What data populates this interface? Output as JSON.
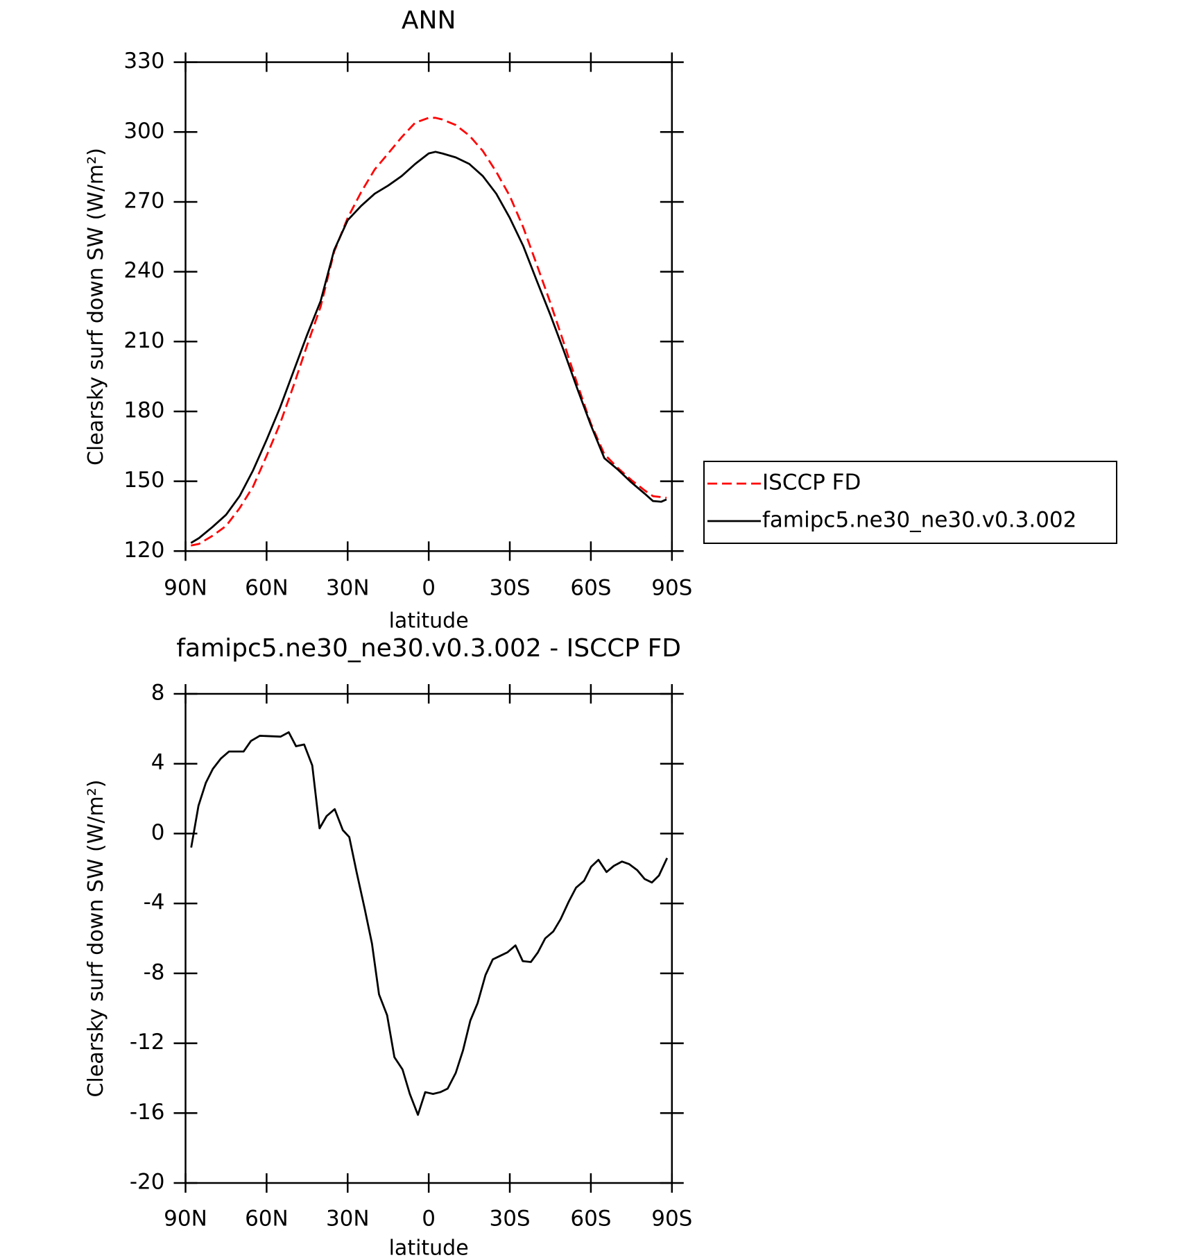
{
  "chart_data": [
    {
      "type": "line",
      "title": "ANN",
      "x_label": "latitude",
      "y_label": "Clearsky surf down SW (W/m²)",
      "x": [
        88,
        85,
        80,
        75,
        70,
        65,
        60,
        55,
        50,
        45,
        40,
        35,
        30,
        25,
        20,
        15,
        10,
        5,
        0,
        -2.5,
        -5,
        -10,
        -15,
        -20,
        -25,
        -30,
        -35,
        -40,
        -45,
        -50,
        -55,
        -60,
        -65,
        -70,
        -75,
        -80,
        -83,
        -86,
        -88
      ],
      "series": [
        {
          "name": "ISCCP FD",
          "color": "#ff0000",
          "line_style": "dashed",
          "values": [
            122.4,
            123.1,
            126.6,
            130.8,
            138.4,
            147.7,
            160.9,
            174.8,
            191.1,
            208.4,
            225,
            248.6,
            263.1,
            274.2,
            283.9,
            290.8,
            297.8,
            304,
            306.1,
            306.1,
            305.4,
            303,
            298.5,
            291.9,
            282.9,
            272.5,
            259,
            243,
            226.7,
            209.4,
            191.7,
            174.8,
            161.6,
            155.7,
            150.5,
            146,
            143.6,
            143.2,
            142.9
          ]
        },
        {
          "name": "famipc5.ne30_ne30.v0.3.002",
          "color": "#000000",
          "line_style": "solid",
          "values": [
            123.5,
            125.6,
            130.4,
            135.6,
            143.6,
            154.7,
            167.8,
            181.7,
            197.3,
            212.9,
            227.4,
            249.3,
            262.1,
            268.3,
            273.5,
            277,
            281.1,
            286.3,
            290.8,
            291.5,
            290.8,
            289.1,
            286.3,
            281.1,
            273.5,
            263.1,
            251,
            236.1,
            221.5,
            206,
            189.7,
            174.1,
            159.9,
            155,
            149.5,
            144.6,
            141.5,
            141.2,
            142.2
          ]
        }
      ],
      "xlim": [
        90,
        -90
      ],
      "xticks": [
        {
          "value": 90,
          "label": "90N"
        },
        {
          "value": 60,
          "label": "60N"
        },
        {
          "value": 30,
          "label": "30N"
        },
        0,
        {
          "value": -30,
          "label": "30S"
        },
        {
          "value": -60,
          "label": "60S"
        },
        {
          "value": -90,
          "label": "90S"
        }
      ],
      "ylim": [
        120,
        330
      ],
      "yticks": [
        120,
        150,
        180,
        210,
        240,
        270,
        300,
        330
      ],
      "legend": "outside-right"
    },
    {
      "type": "line",
      "title": "famipc5.ne30_ne30.v0.3.002 - ISCCP FD",
      "x_label": "latitude",
      "y_label": "Clearsky surf down SW (W/m²)",
      "x": [
        87.9,
        85.2,
        82.5,
        79.9,
        76.9,
        73.9,
        68.5,
        65.8,
        62.5,
        54.8,
        51.8,
        49.1,
        46.1,
        43.1,
        40.4,
        37.8,
        34.8,
        31.8,
        29.4,
        26.7,
        23.7,
        21,
        18.4,
        15.4,
        12.7,
        9.7,
        7,
        4,
        1.3,
        -1.6,
        -4.3,
        -7,
        -10,
        -12.7,
        -15.4,
        -18.1,
        -21,
        -23.7,
        -26.4,
        -29.1,
        -32.1,
        -34.8,
        -37.8,
        -40.4,
        -43.1,
        -46.1,
        -48.8,
        -51.8,
        -54.5,
        -57.5,
        -60.1,
        -62.8,
        -65.8,
        -68.5,
        -71.5,
        -74.2,
        -77.2,
        -79.9,
        -82.6,
        -85.2,
        -88.2
      ],
      "values": [
        -0.8,
        1.6,
        2.9,
        3.7,
        4.3,
        4.7,
        4.7,
        5.3,
        5.6,
        5.55,
        5.8,
        5,
        5.1,
        3.9,
        0.3,
        1,
        1.4,
        0.2,
        -0.2,
        -2.2,
        -4.3,
        -6.3,
        -9.2,
        -10.4,
        -12.8,
        -13.5,
        -14.9,
        -16.1,
        -14.8,
        -14.9,
        -14.8,
        -14.6,
        -13.7,
        -12.4,
        -10.7,
        -9.7,
        -8.1,
        -7.2,
        -7,
        -6.8,
        -6.4,
        -7.3,
        -7.35,
        -6.8,
        -6,
        -5.6,
        -4.9,
        -3.9,
        -3.1,
        -2.7,
        -1.9,
        -1.5,
        -2.2,
        -1.85,
        -1.6,
        -1.75,
        -2.1,
        -2.6,
        -2.8,
        -2.4,
        -1.4
      ],
      "color": "#000000",
      "xlim": [
        90,
        -90
      ],
      "xticks": [
        {
          "value": 90,
          "label": "90N"
        },
        {
          "value": 60,
          "label": "60N"
        },
        {
          "value": 30,
          "label": "30N"
        },
        0,
        {
          "value": -30,
          "label": "30S"
        },
        {
          "value": -60,
          "label": "60S"
        },
        {
          "value": -90,
          "label": "90S"
        }
      ],
      "ylim": [
        -20,
        8
      ],
      "yticks": [
        -20,
        -16,
        -12,
        -8,
        -4,
        0,
        4,
        8
      ]
    }
  ]
}
